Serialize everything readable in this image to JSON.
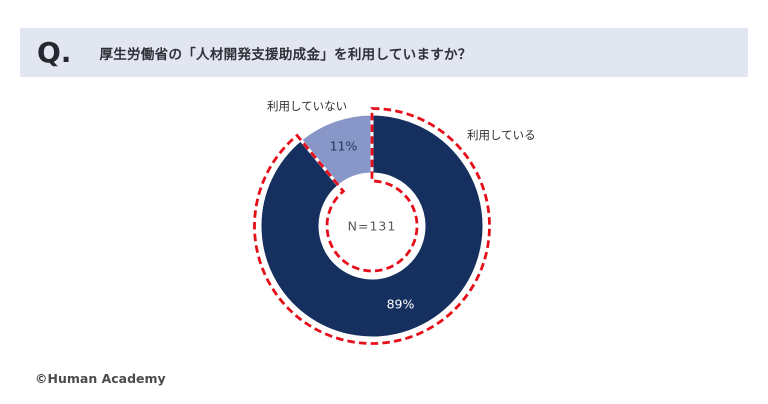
{
  "header": {
    "q_label": "Q.",
    "question": "厚生労働省の「人材開発支援助成金」を利用していますか？"
  },
  "footer": {
    "copyright": "©Human Academy"
  },
  "colors": {
    "banner_bg": "#e1e6f1",
    "navy": "#15305f",
    "light_purple": "#8897c7",
    "highlight_red": "#e60e19",
    "label_text": "#2f2f2f",
    "center_text": "#595959"
  },
  "chart_data": {
    "type": "pie",
    "donut": true,
    "title": "厚生労働省の「人材開発支援助成金」を利用していますか？",
    "categories": [
      "利用している",
      "利用していない"
    ],
    "values": [
      89,
      11
    ],
    "unit": "%",
    "value_labels": [
      "89%",
      "11%"
    ],
    "value_label_colors": [
      "#ffffff",
      "#1f3864"
    ],
    "colors": [
      "#15305f",
      "#8897c7"
    ],
    "center_label": "N=131",
    "legend_position": "none",
    "highlight": {
      "category": "利用している",
      "style": "red dashed outline",
      "color": "#e60e19"
    }
  }
}
